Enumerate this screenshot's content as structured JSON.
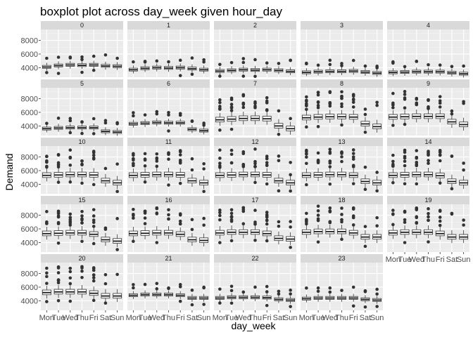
{
  "chart_data": {
    "type": "boxplot",
    "title": "boxplot plot across day_week given hour_day",
    "xlabel": "day_week",
    "ylabel": "Demand",
    "ylim": [
      2600,
      9600
    ],
    "yticks": [
      4000,
      6000,
      8000
    ],
    "categories": [
      "Mon",
      "Tue",
      "Wed",
      "Thu",
      "Fri",
      "Sat",
      "Sun"
    ],
    "facet_variable": "hour_day",
    "facets": [
      {
        "label": "0",
        "medians": [
          4100,
          4300,
          4400,
          4350,
          4400,
          4250,
          4200
        ]
      },
      {
        "label": "1",
        "medians": [
          3700,
          3900,
          4000,
          3950,
          4000,
          3850,
          3700
        ]
      },
      {
        "label": "2",
        "medians": [
          3500,
          3600,
          3700,
          3650,
          3700,
          3600,
          3450
        ]
      },
      {
        "label": "3",
        "medians": [
          3300,
          3400,
          3450,
          3450,
          3500,
          3350,
          3200
        ]
      },
      {
        "label": "4",
        "medians": [
          3300,
          3350,
          3400,
          3400,
          3400,
          3250,
          3100
        ]
      },
      {
        "label": "5",
        "medians": [
          3600,
          3700,
          3750,
          3750,
          3750,
          3200,
          3100
        ]
      },
      {
        "label": "6",
        "medians": [
          4300,
          4400,
          4500,
          4450,
          4450,
          3500,
          3300
        ]
      },
      {
        "label": "7",
        "medians": [
          4900,
          5000,
          5100,
          5100,
          5050,
          4000,
          3600
        ]
      },
      {
        "label": "8",
        "medians": [
          5200,
          5300,
          5350,
          5350,
          5300,
          4300,
          3900
        ]
      },
      {
        "label": "9",
        "medians": [
          5300,
          5350,
          5400,
          5400,
          5400,
          4600,
          4200
        ]
      },
      {
        "label": "10",
        "medians": [
          5300,
          5350,
          5400,
          5400,
          5350,
          4500,
          4200
        ]
      },
      {
        "label": "11",
        "medians": [
          5300,
          5350,
          5400,
          5400,
          5350,
          4500,
          4200
        ]
      },
      {
        "label": "12",
        "medians": [
          5300,
          5350,
          5400,
          5400,
          5350,
          4500,
          4200
        ]
      },
      {
        "label": "13",
        "medians": [
          5300,
          5350,
          5400,
          5400,
          5300,
          4400,
          4200
        ]
      },
      {
        "label": "14",
        "medians": [
          5300,
          5350,
          5400,
          5400,
          5250,
          4400,
          4200
        ]
      },
      {
        "label": "15",
        "medians": [
          5300,
          5350,
          5400,
          5400,
          5200,
          4400,
          4200
        ]
      },
      {
        "label": "16",
        "medians": [
          5300,
          5350,
          5400,
          5400,
          5200,
          4400,
          4300
        ]
      },
      {
        "label": "17",
        "medians": [
          5400,
          5500,
          5500,
          5500,
          5300,
          4600,
          4500
        ]
      },
      {
        "label": "18",
        "medians": [
          5500,
          5600,
          5600,
          5600,
          5400,
          4800,
          4800
        ]
      },
      {
        "label": "19",
        "medians": [
          5400,
          5500,
          5500,
          5500,
          5300,
          4800,
          4800
        ]
      },
      {
        "label": "20",
        "medians": [
          5200,
          5300,
          5300,
          5300,
          5100,
          4700,
          4700
        ]
      },
      {
        "label": "21",
        "medians": [
          4800,
          4900,
          4900,
          4900,
          4800,
          4400,
          4400
        ]
      },
      {
        "label": "22",
        "medians": [
          4400,
          4500,
          4500,
          4500,
          4450,
          4200,
          4100
        ]
      },
      {
        "label": "23",
        "medians": [
          4300,
          4400,
          4400,
          4400,
          4400,
          4200,
          4100
        ]
      }
    ]
  }
}
